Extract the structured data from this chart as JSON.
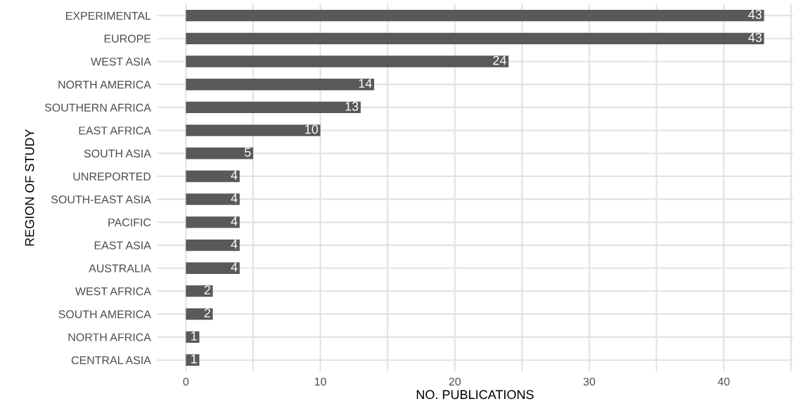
{
  "chart_data": {
    "type": "bar",
    "orientation": "horizontal",
    "xlabel": "NO. PUBLICATIONS",
    "ylabel": "REGION OF STUDY",
    "categories": [
      "EXPERIMENTAL",
      "EUROPE",
      "WEST ASIA",
      "NORTH AMERICA",
      "SOUTHERN AFRICA",
      "EAST AFRICA",
      "SOUTH ASIA",
      "UNREPORTED",
      "SOUTH-EAST ASIA",
      "PACIFIC",
      "EAST ASIA",
      "AUSTRALIA",
      "WEST AFRICA",
      "SOUTH AMERICA",
      "NORTH AFRICA",
      "CENTRAL ASIA"
    ],
    "values": [
      43,
      43,
      24,
      14,
      13,
      10,
      5,
      4,
      4,
      4,
      4,
      4,
      2,
      2,
      1,
      1
    ],
    "color": "#595959",
    "data_labels": true,
    "xlim": [
      -2.15,
      45.15
    ],
    "xticks": [
      0,
      {
        "value": 5,
        "label": null
      },
      10,
      {
        "value": 15,
        "label": null
      },
      20,
      {
        "value": 25,
        "label": null
      },
      30,
      {
        "value": 35,
        "label": null
      },
      40,
      {
        "value": 45,
        "label": null
      }
    ],
    "grid": true
  }
}
